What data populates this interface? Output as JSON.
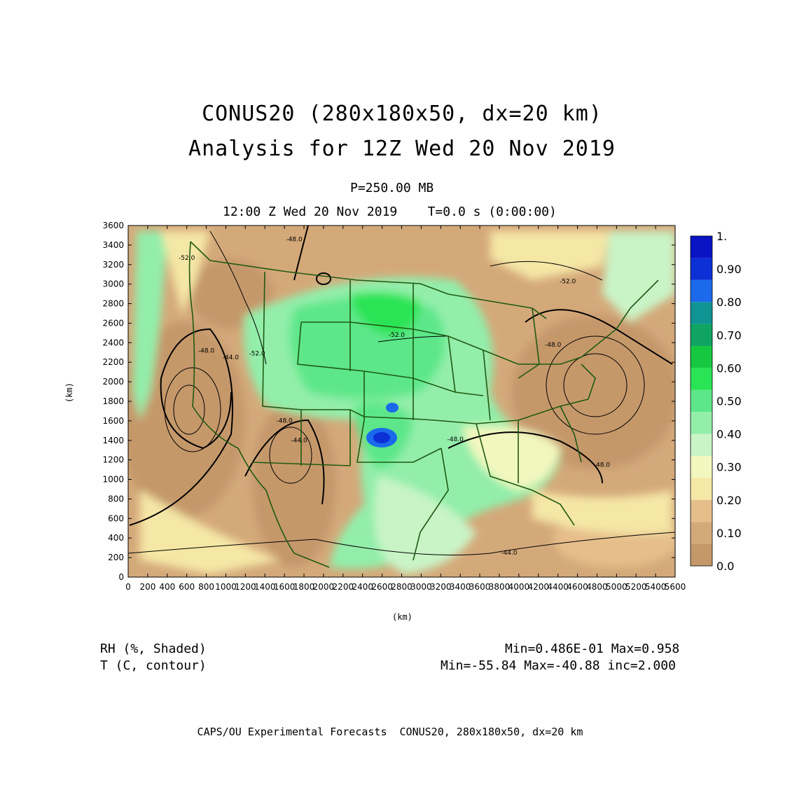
{
  "title": {
    "line1": "CONUS20 (280x180x50, dx=20 km)",
    "line2": "Analysis for 12Z Wed 20 Nov 2019"
  },
  "level": "P=250.00 MB",
  "valid_time": "12:00 Z Wed 20 Nov 2019    T=0.0 s (0:00:00)",
  "axes": {
    "x_unit": "(km)",
    "y_unit": "(km)",
    "x_ticks": [
      "0",
      "200",
      "400",
      "600",
      "800",
      "1000",
      "1200",
      "1400",
      "1600",
      "1800",
      "2000",
      "2200",
      "2400",
      "2600",
      "2800",
      "3000",
      "3200",
      "3400",
      "3600",
      "3800",
      "4000",
      "4200",
      "4400",
      "4600",
      "4800",
      "5000",
      "5200",
      "5400",
      "5600"
    ],
    "y_ticks": [
      "0",
      "200",
      "400",
      "600",
      "800",
      "1000",
      "1200",
      "1400",
      "1600",
      "1800",
      "2000",
      "2200",
      "2400",
      "2600",
      "2800",
      "3000",
      "3200",
      "3400",
      "3600"
    ],
    "x_range": [
      0,
      5600
    ],
    "y_range": [
      0,
      3600
    ]
  },
  "colorbar": {
    "labels": [
      "0.0",
      "0.10",
      "0.20",
      "0.30",
      "0.40",
      "0.50",
      "0.60",
      "0.70",
      "0.80",
      "0.90",
      "1."
    ],
    "colors": [
      "#c5986a",
      "#d4a97a",
      "#e6be8a",
      "#f5e7a6",
      "#f2f7bf",
      "#c9f4c6",
      "#93eeaa",
      "#5de78a",
      "#29e455",
      "#16c840",
      "#10a463",
      "#0f9393",
      "#1a6aeb",
      "#0c2fd6",
      "#0a14c4"
    ]
  },
  "contour_labels": [
    "-52.0",
    "-48.0",
    "-44.0",
    "-48.0",
    "-44.0",
    "-52.0",
    "-52.0",
    "-48.0",
    "-48.0",
    "-44.0",
    "-48.0",
    "-52.0",
    "-48.0"
  ],
  "footer": {
    "field1": "RH (%, Shaded)",
    "field2": "T (C, contour)",
    "stats1": "Min=0.486E-01 Max=0.958",
    "stats2": "Min=-55.84 Max=-40.88 inc=2.000"
  },
  "credit": "CAPS/OU Experimental Forecasts  CONUS20, 280x180x50, dx=20 km"
}
